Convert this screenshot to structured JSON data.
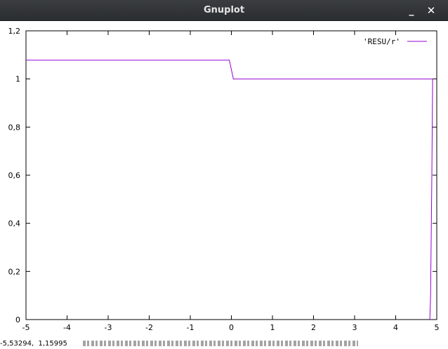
{
  "window": {
    "title": "Gnuplot",
    "minimize_glyph": "_",
    "close_glyph": "✕",
    "icons": [
      "minimize-icon",
      "close-icon"
    ]
  },
  "status": {
    "coordinates": "-5,53294,  1,15995"
  },
  "chart_data": {
    "type": "line",
    "xlim": [
      -5,
      5
    ],
    "ylim": [
      0,
      1.2
    ],
    "xticks": [
      -5,
      -4,
      -3,
      -2,
      -1,
      0,
      1,
      2,
      3,
      4,
      5
    ],
    "yticks": [
      0,
      0.2,
      0.4,
      0.6,
      0.8,
      1,
      1.2
    ],
    "xtick_labels": [
      "-5",
      "-4",
      "-3",
      "-2",
      "-1",
      "0",
      "1",
      "2",
      "3",
      "4",
      "5"
    ],
    "ytick_labels": [
      "0",
      "0,2",
      "0,4",
      "0,6",
      "0,8",
      "1",
      "1,2"
    ],
    "grid": false,
    "legend_position": "top-right",
    "series": [
      {
        "name": "'RESU/r'",
        "color": "#9400d3",
        "x": [
          -5,
          -0.05,
          0.05,
          4.9,
          4.88,
          4.85,
          4.83
        ],
        "y": [
          1.078,
          1.078,
          1.0,
          1.0,
          0.6,
          0.1,
          0.0
        ]
      }
    ]
  }
}
